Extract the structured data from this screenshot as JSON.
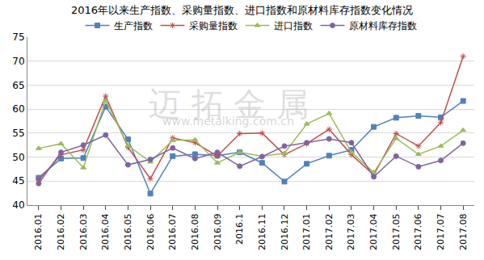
{
  "chart_data": {
    "type": "line",
    "title": "2016年以来生产指数、采购量指数、进口指数和原材料库存指数变化情况",
    "annotations": [
      "迈 拓 金 属",
      "www.metalking.com.cn"
    ],
    "categories": [
      "2016.01",
      "2016.02",
      "2016.03",
      "2016.04",
      "2016.05",
      "2016.06",
      "2016.07",
      "2016.08",
      "2016.09",
      "2016.1",
      "2016.11",
      "2016.12",
      "2017.01",
      "2017.02",
      "2017.03",
      "2017.04",
      "2017.05",
      "2017.06",
      "2017.07",
      "2017.08"
    ],
    "series": [
      {
        "name": "生产指数",
        "color": "#4f81bd",
        "marker": "square",
        "values": [
          45.7,
          49.7,
          49.8,
          60.5,
          53.7,
          42.4,
          50.2,
          50.6,
          50.3,
          51.0,
          48.8,
          44.9,
          48.6,
          50.3,
          51.5,
          56.3,
          58.2,
          58.6,
          58.3,
          61.7
        ]
      },
      {
        "name": "采购量指数",
        "color": "#c0504d",
        "marker": "asterisk-open",
        "values": [
          45.2,
          50.5,
          51.5,
          62.7,
          52.0,
          45.5,
          54.0,
          53.0,
          50.2,
          54.9,
          55.0,
          50.5,
          52.8,
          55.8,
          50.5,
          46.3,
          54.9,
          52.3,
          57.2,
          71.0
        ]
      },
      {
        "name": "进口指数",
        "color": "#9bbb59",
        "marker": "triangle-up",
        "values": [
          51.8,
          52.8,
          47.8,
          61.8,
          52.4,
          49.0,
          53.5,
          53.6,
          48.8,
          51.0,
          50.2,
          50.8,
          56.9,
          59.1,
          51.0,
          46.8,
          53.9,
          50.6,
          52.3,
          55.6
        ]
      },
      {
        "name": "原材料库存指数",
        "color": "#8064a2",
        "marker": "circle",
        "values": [
          44.5,
          51.0,
          52.5,
          54.6,
          48.4,
          49.5,
          51.9,
          49.7,
          51.0,
          48.1,
          50.1,
          52.3,
          53.0,
          53.8,
          53.0,
          45.9,
          50.2,
          48.0,
          49.3,
          52.9
        ]
      }
    ],
    "ylim": [
      40,
      75
    ],
    "yticks": [
      40,
      45,
      50,
      55,
      60,
      65,
      70,
      75
    ],
    "grid": true,
    "legend": "top"
  }
}
